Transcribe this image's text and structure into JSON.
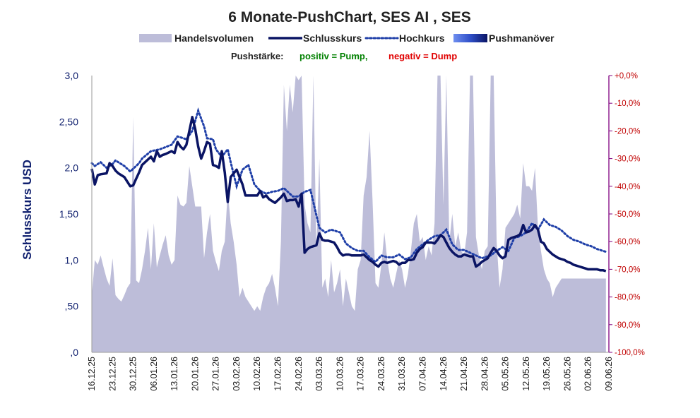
{
  "chart_data": {
    "type": "line",
    "title": "6 Monate-PushChart, SES AI , SES",
    "legend": [
      {
        "label": "Handelsvolumen",
        "kind": "area",
        "color": "#bdbdd9"
      },
      {
        "label": "Schlusskurs",
        "kind": "line",
        "color": "#0a1464"
      },
      {
        "label": "Hochkurs",
        "kind": "dotted",
        "color": "#1f3fa8"
      },
      {
        "label": "Pushmanöver",
        "kind": "gradient",
        "color": "#3d63d8"
      }
    ],
    "pushstaerke": {
      "label": "Pushstärke:",
      "positive": "positiv = Pump,",
      "negative": "negativ = Dump",
      "positive_color": "#008000",
      "negative_color": "#e00000"
    },
    "ylabel": "Schlusskurs USD",
    "ylim": [
      0,
      3.0
    ],
    "y2lim": [
      -100,
      0
    ],
    "yticks_left": [
      ",0",
      ",50",
      "1,0",
      "1,50",
      "2,0",
      "2,50",
      "3,0"
    ],
    "yticks_right": [
      "-100,0%",
      "-90,0%",
      "-80,0%",
      "-70,0%",
      "-60,0%",
      "-50,0%",
      "-40,0%",
      "-30,0%",
      "-20,0%",
      "-10,0%",
      "+0,0%"
    ],
    "xticks": [
      "16.12.25",
      "23.12.25",
      "30.12.25",
      "06.01.26",
      "13.01.26",
      "20.01.26",
      "27.01.26",
      "03.02.26",
      "10.02.26",
      "17.02.26",
      "24.02.26",
      "03.03.26",
      "10.03.26",
      "17.03.26",
      "24.03.26",
      "31.03.26",
      "07.04.26",
      "14.04.26",
      "21.04.26",
      "28.04.26",
      "05.05.26",
      "12.05.26",
      "19.05.26",
      "26.05.26",
      "02.06.26",
      "09.06.26"
    ],
    "x_range_days": [
      0,
      175
    ],
    "grid": false,
    "legend_position": "top",
    "colors": {
      "volume": "#bdbdd9",
      "close": "#0a1464",
      "high": "#1f3fa8",
      "left_axis": "#0f1f6e",
      "right_axis": "#c00000",
      "frame_right": "#800080"
    },
    "series": [
      {
        "name": "Schlusskurs",
        "x": [
          0,
          1,
          2,
          3,
          5,
          6,
          7,
          8,
          9,
          10,
          11,
          13,
          14,
          15,
          16,
          17,
          20,
          21,
          22,
          23,
          24,
          25,
          27,
          28,
          29,
          30,
          31,
          32,
          34,
          35,
          36,
          37,
          38,
          39,
          40,
          41,
          42,
          43,
          44,
          45,
          46,
          47,
          48,
          49,
          50,
          51,
          52,
          53,
          54,
          55,
          56,
          57,
          58,
          59,
          60,
          61,
          62,
          63,
          64,
          65,
          66,
          67,
          68,
          69,
          70,
          71,
          72,
          73,
          74,
          75,
          76,
          77,
          78,
          79,
          80,
          81,
          82,
          83,
          84,
          85,
          86,
          87,
          88,
          89,
          90,
          91,
          92,
          93,
          94,
          95,
          96,
          97,
          98,
          99,
          100,
          101,
          102,
          103,
          104,
          105,
          106,
          107,
          108,
          109,
          110,
          111,
          112,
          113,
          114,
          115,
          116,
          117,
          118,
          119,
          120,
          121,
          122,
          123,
          124,
          125,
          126,
          127,
          128,
          129,
          130,
          131,
          132,
          133,
          134,
          135,
          136,
          137,
          138,
          139,
          140,
          141,
          142,
          143,
          144,
          145,
          146,
          147,
          148,
          149,
          150,
          151,
          152,
          153,
          154,
          155,
          156,
          157,
          158,
          159,
          160,
          161,
          162,
          163,
          164,
          165,
          166,
          167,
          168,
          169,
          170,
          171,
          172,
          173,
          174
        ],
        "values": [
          1.99,
          1.82,
          1.92,
          1.93,
          1.94,
          2.05,
          2.02,
          1.97,
          1.94,
          1.92,
          1.9,
          1.8,
          1.81,
          1.88,
          1.95,
          2.03,
          2.12,
          2.07,
          2.18,
          2.12,
          2.14,
          2.15,
          2.18,
          2.16,
          2.28,
          2.23,
          2.2,
          2.25,
          2.55,
          2.42,
          2.23,
          2.1,
          2.18,
          2.28,
          2.26,
          2.03,
          2.02,
          2.0,
          2.18,
          1.95,
          1.63,
          1.9,
          1.94,
          1.98,
          1.9,
          1.82,
          1.7,
          1.7,
          1.7,
          1.7,
          1.7,
          1.75,
          1.68,
          1.7,
          1.66,
          1.64,
          1.62,
          1.65,
          1.68,
          1.72,
          1.64,
          1.65,
          1.65,
          1.66,
          1.58,
          1.72,
          1.08,
          1.12,
          1.14,
          1.15,
          1.16,
          1.29,
          1.22,
          1.21,
          1.21,
          1.2,
          1.19,
          1.14,
          1.08,
          1.05,
          1.06,
          1.06,
          1.05,
          1.05,
          1.05,
          1.05,
          1.06,
          1.03,
          1.0,
          0.98,
          0.95,
          0.93,
          0.97,
          0.98,
          0.97,
          0.98,
          0.99,
          0.98,
          0.95,
          0.97,
          0.97,
          1.0,
          1.0,
          1.01,
          1.08,
          1.12,
          1.14,
          1.19,
          1.19,
          1.19,
          1.18,
          1.22,
          1.27,
          1.25,
          1.19,
          1.13,
          1.09,
          1.06,
          1.04,
          1.04,
          1.06,
          1.05,
          1.04,
          1.04,
          0.93,
          0.95,
          0.98,
          1.0,
          1.02,
          1.08,
          1.13,
          1.1,
          1.05,
          1.02,
          1.04,
          1.22,
          1.24,
          1.25,
          1.26,
          1.28,
          1.38,
          1.3,
          1.31,
          1.33,
          1.38,
          1.33,
          1.2,
          1.18,
          1.12,
          1.09,
          1.06,
          1.04,
          1.02,
          1.01,
          1.0,
          0.98,
          0.97,
          0.95,
          0.94,
          0.93,
          0.92,
          0.91,
          0.9,
          0.9,
          0.9,
          0.9,
          0.89,
          0.89,
          0.88
        ]
      },
      {
        "name": "Hochkurs",
        "x": [
          0,
          1,
          3,
          5,
          7,
          8,
          11,
          13,
          16,
          17,
          20,
          23,
          27,
          29,
          32,
          34,
          36,
          38,
          39,
          41,
          42,
          44,
          46,
          47,
          49,
          51,
          53,
          55,
          57,
          59,
          61,
          63,
          65,
          68,
          70,
          72,
          74,
          77,
          79,
          81,
          84,
          86,
          88,
          90,
          92,
          94,
          96,
          98,
          100,
          102,
          104,
          106,
          108,
          110,
          112,
          114,
          116,
          118,
          120,
          122,
          124,
          126,
          128,
          130,
          132,
          135,
          137,
          139,
          141,
          143,
          145,
          147,
          149,
          151,
          153,
          155,
          157,
          159,
          161,
          163,
          165,
          167,
          169,
          171,
          173,
          174
        ],
        "values": [
          2.05,
          2.02,
          2.06,
          2.0,
          2.04,
          2.08,
          2.02,
          1.96,
          2.05,
          2.1,
          2.18,
          2.2,
          2.25,
          2.34,
          2.31,
          2.4,
          2.62,
          2.45,
          2.32,
          2.31,
          2.2,
          2.12,
          2.2,
          2.06,
          1.8,
          1.98,
          2.03,
          1.82,
          1.75,
          1.72,
          1.74,
          1.75,
          1.78,
          1.69,
          1.69,
          1.74,
          1.76,
          1.35,
          1.3,
          1.33,
          1.3,
          1.18,
          1.13,
          1.1,
          1.1,
          1.03,
          0.98,
          1.05,
          1.03,
          1.03,
          1.06,
          1.01,
          1.03,
          1.12,
          1.17,
          1.22,
          1.26,
          1.27,
          1.33,
          1.17,
          1.11,
          1.11,
          1.08,
          1.05,
          1.02,
          1.05,
          1.1,
          1.14,
          1.1,
          1.24,
          1.26,
          1.3,
          1.4,
          1.33,
          1.44,
          1.38,
          1.36,
          1.32,
          1.26,
          1.22,
          1.2,
          1.17,
          1.15,
          1.12,
          1.1,
          1.09
        ]
      },
      {
        "name": "Handelsvolumen",
        "kind": "area",
        "x": [
          0,
          1,
          2,
          3,
          4,
          5,
          6,
          7,
          8,
          9,
          10,
          11,
          12,
          13,
          14,
          15,
          16,
          17,
          18,
          19,
          20,
          21,
          22,
          23,
          24,
          25,
          26,
          27,
          28,
          29,
          30,
          31,
          32,
          33,
          34,
          35,
          36,
          37,
          38,
          39,
          40,
          41,
          42,
          43,
          44,
          45,
          46,
          47,
          48,
          49,
          50,
          51,
          52,
          53,
          54,
          55,
          56,
          57,
          58,
          59,
          60,
          61,
          62,
          63,
          64,
          65,
          66,
          67,
          68,
          69,
          70,
          71,
          72,
          73,
          74,
          75,
          76,
          77,
          78,
          79,
          80,
          81,
          82,
          83,
          84,
          85,
          86,
          87,
          88,
          89,
          90,
          91,
          92,
          93,
          94,
          95,
          96,
          97,
          98,
          99,
          100,
          101,
          102,
          103,
          104,
          105,
          106,
          107,
          108,
          109,
          110,
          111,
          112,
          113,
          114,
          115,
          116,
          117,
          118,
          119,
          120,
          121,
          122,
          123,
          124,
          125,
          126,
          127,
          128,
          129,
          130,
          131,
          132,
          133,
          134,
          135,
          136,
          137,
          138,
          139,
          140,
          141,
          142,
          143,
          144,
          145,
          146,
          147,
          148,
          149,
          150,
          151,
          152,
          153,
          154,
          155,
          156,
          157,
          158,
          159,
          160,
          161,
          162,
          163,
          164,
          165,
          166,
          167,
          168,
          169,
          170,
          171,
          172,
          173,
          174
        ],
        "values": [
          0.62,
          1.0,
          0.95,
          1.05,
          0.92,
          0.8,
          0.72,
          1.02,
          0.62,
          0.58,
          0.55,
          0.62,
          0.7,
          0.75,
          2.55,
          0.78,
          0.75,
          0.9,
          1.1,
          1.35,
          0.9,
          1.4,
          0.92,
          1.05,
          1.17,
          1.27,
          1.05,
          0.95,
          1.0,
          1.7,
          1.6,
          1.58,
          1.62,
          2.02,
          1.8,
          1.58,
          1.58,
          1.58,
          1.02,
          1.3,
          1.5,
          1.1,
          0.98,
          0.88,
          1.1,
          1.2,
          1.75,
          1.4,
          1.2,
          0.95,
          0.6,
          0.7,
          0.6,
          0.55,
          0.5,
          0.45,
          0.5,
          0.45,
          0.6,
          0.7,
          0.75,
          0.85,
          0.7,
          0.5,
          1.2,
          2.9,
          2.4,
          2.9,
          2.6,
          3.0,
          2.95,
          3.0,
          1.6,
          1.4,
          1.3,
          3.0,
          1.1,
          2.1,
          0.7,
          0.8,
          0.6,
          1.0,
          0.65,
          0.75,
          0.9,
          0.5,
          0.8,
          0.65,
          0.5,
          0.45,
          0.9,
          1.0,
          1.7,
          1.9,
          2.4,
          1.65,
          0.75,
          0.7,
          0.95,
          1.3,
          1.0,
          0.8,
          0.7,
          0.85,
          1.0,
          0.9,
          0.7,
          0.85,
          1.1,
          1.4,
          1.5,
          1.2,
          1.25,
          1.0,
          1.15,
          1.05,
          1.4,
          3.0,
          3.0,
          1.6,
          3.0,
          1.2,
          1.5,
          1.15,
          1.3,
          1.1,
          1.05,
          1.3,
          3.0,
          3.0,
          1.25,
          1.05,
          0.9,
          1.1,
          1.15,
          3.0,
          3.0,
          1.2,
          0.7,
          0.9,
          1.35,
          1.4,
          1.45,
          1.5,
          1.6,
          1.45,
          2.05,
          1.8,
          1.8,
          1.75,
          2.0,
          1.35,
          1.1,
          0.9,
          0.8,
          0.75,
          0.6,
          0.7,
          0.75,
          0.8,
          0.8,
          0.8,
          0.8,
          0.8,
          0.8,
          0.8,
          0.8,
          0.8,
          0.8,
          0.8,
          0.8,
          0.8,
          0.8,
          0.8,
          0.8
        ]
      }
    ]
  }
}
